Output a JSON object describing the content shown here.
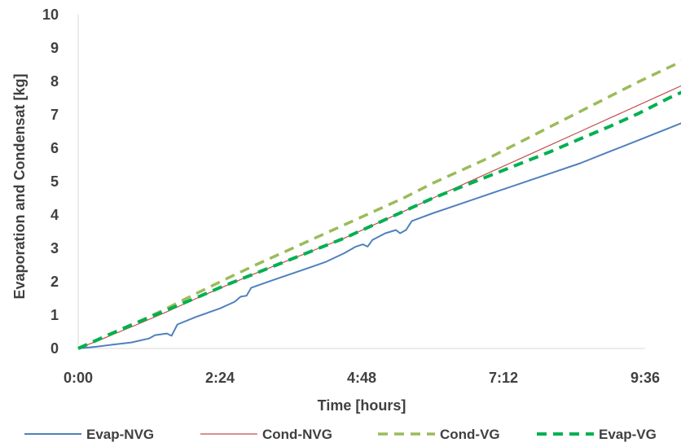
{
  "chart_data": {
    "type": "line",
    "title": "",
    "xlabel": "Time [hours]",
    "ylabel": "Evaporation and Condensat [kg]",
    "xlim": [
      0,
      9.6
    ],
    "ylim": [
      0,
      10
    ],
    "x_ticks": [
      {
        "value": 0,
        "label": "0:00"
      },
      {
        "value": 2.4,
        "label": "2:24"
      },
      {
        "value": 4.8,
        "label": "4:48"
      },
      {
        "value": 7.2,
        "label": "7:12"
      },
      {
        "value": 9.6,
        "label": "9:36"
      }
    ],
    "y_ticks": [
      {
        "value": 0,
        "label": "0"
      },
      {
        "value": 1,
        "label": "1"
      },
      {
        "value": 2,
        "label": "2"
      },
      {
        "value": 3,
        "label": "3"
      },
      {
        "value": 4,
        "label": "4"
      },
      {
        "value": 5,
        "label": "5"
      },
      {
        "value": 6,
        "label": "6"
      },
      {
        "value": 7,
        "label": "7"
      },
      {
        "value": 8,
        "label": "8"
      },
      {
        "value": 9,
        "label": "9"
      },
      {
        "value": 10,
        "label": "10"
      }
    ],
    "grid": false,
    "legend_position": "bottom",
    "series": [
      {
        "name": "Evap-NVG",
        "color": "#4F81BD",
        "style": "solid",
        "points": [
          [
            0,
            0
          ],
          [
            0.3,
            0.05
          ],
          [
            0.6,
            0.12
          ],
          [
            0.9,
            0.18
          ],
          [
            1.2,
            0.3
          ],
          [
            1.3,
            0.4
          ],
          [
            1.5,
            0.45
          ],
          [
            1.58,
            0.38
          ],
          [
            1.68,
            0.72
          ],
          [
            2.0,
            0.95
          ],
          [
            2.4,
            1.2
          ],
          [
            2.65,
            1.4
          ],
          [
            2.75,
            1.55
          ],
          [
            2.85,
            1.58
          ],
          [
            2.93,
            1.82
          ],
          [
            3.3,
            2.05
          ],
          [
            3.8,
            2.35
          ],
          [
            4.2,
            2.6
          ],
          [
            4.5,
            2.85
          ],
          [
            4.7,
            3.05
          ],
          [
            4.82,
            3.12
          ],
          [
            4.9,
            3.05
          ],
          [
            4.98,
            3.25
          ],
          [
            5.2,
            3.45
          ],
          [
            5.38,
            3.55
          ],
          [
            5.45,
            3.45
          ],
          [
            5.55,
            3.55
          ],
          [
            5.65,
            3.82
          ],
          [
            6.0,
            4.05
          ],
          [
            6.5,
            4.35
          ],
          [
            7.0,
            4.65
          ],
          [
            7.5,
            4.95
          ],
          [
            8.0,
            5.25
          ],
          [
            8.5,
            5.55
          ],
          [
            9.0,
            5.9
          ],
          [
            9.5,
            6.25
          ],
          [
            10.0,
            6.6
          ],
          [
            10.5,
            6.95
          ],
          [
            10.7,
            7.1
          ]
        ]
      },
      {
        "name": "Cond-NVG",
        "color": "#C0504D",
        "style": "solid",
        "points": [
          [
            0,
            0
          ],
          [
            0.5,
            0.35
          ],
          [
            1.0,
            0.72
          ],
          [
            1.5,
            1.1
          ],
          [
            2.0,
            1.5
          ],
          [
            2.5,
            1.88
          ],
          [
            3.0,
            2.25
          ],
          [
            3.5,
            2.6
          ],
          [
            4.0,
            2.95
          ],
          [
            4.5,
            3.3
          ],
          [
            5.0,
            3.7
          ],
          [
            5.5,
            4.1
          ],
          [
            6.0,
            4.5
          ],
          [
            6.5,
            4.9
          ],
          [
            7.0,
            5.3
          ],
          [
            7.5,
            5.7
          ],
          [
            8.0,
            6.1
          ],
          [
            8.5,
            6.5
          ],
          [
            9.0,
            6.9
          ],
          [
            9.5,
            7.3
          ],
          [
            10.0,
            7.7
          ],
          [
            10.5,
            8.1
          ],
          [
            10.7,
            8.25
          ]
        ]
      },
      {
        "name": "Cond-VG",
        "color": "#9BBB59",
        "style": "dashed",
        "points": [
          [
            0,
            0
          ],
          [
            0.5,
            0.38
          ],
          [
            1.0,
            0.78
          ],
          [
            1.5,
            1.2
          ],
          [
            2.0,
            1.65
          ],
          [
            2.5,
            2.08
          ],
          [
            3.0,
            2.5
          ],
          [
            3.5,
            2.9
          ],
          [
            4.0,
            3.3
          ],
          [
            4.5,
            3.7
          ],
          [
            5.0,
            4.1
          ],
          [
            5.5,
            4.5
          ],
          [
            6.0,
            4.95
          ],
          [
            6.5,
            5.35
          ],
          [
            7.0,
            5.75
          ],
          [
            7.5,
            6.2
          ],
          [
            8.0,
            6.65
          ],
          [
            8.5,
            7.1
          ],
          [
            9.0,
            7.55
          ],
          [
            9.5,
            8.0
          ],
          [
            10.0,
            8.42
          ],
          [
            10.4,
            8.75
          ],
          [
            10.7,
            8.82
          ]
        ]
      },
      {
        "name": "Evap-VG",
        "color": "#00B050",
        "style": "dashed",
        "points": [
          [
            0,
            0
          ],
          [
            0.5,
            0.4
          ],
          [
            1.0,
            0.78
          ],
          [
            1.5,
            1.15
          ],
          [
            2.0,
            1.52
          ],
          [
            2.5,
            1.9
          ],
          [
            3.0,
            2.25
          ],
          [
            3.5,
            2.6
          ],
          [
            4.0,
            2.95
          ],
          [
            4.5,
            3.3
          ],
          [
            5.0,
            3.7
          ],
          [
            5.5,
            4.1
          ],
          [
            6.0,
            4.5
          ],
          [
            6.5,
            4.85
          ],
          [
            7.0,
            5.2
          ],
          [
            7.5,
            5.55
          ],
          [
            8.0,
            5.9
          ],
          [
            8.5,
            6.28
          ],
          [
            9.0,
            6.65
          ],
          [
            9.5,
            7.05
          ],
          [
            10.0,
            7.5
          ],
          [
            10.5,
            7.9
          ],
          [
            10.7,
            8.1
          ]
        ]
      }
    ]
  }
}
